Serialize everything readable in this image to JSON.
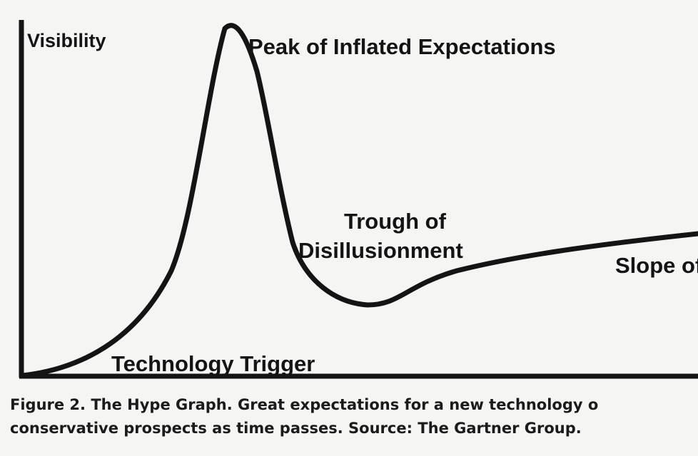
{
  "diagram": {
    "type": "hype-cycle",
    "axis": {
      "y_label": "Visibility"
    },
    "phases": [
      {
        "id": "technology-trigger",
        "label": "Technology Trigger"
      },
      {
        "id": "peak",
        "label": "Peak of Inflated Expectations"
      },
      {
        "id": "trough",
        "label_line1": "Trough of",
        "label_line2": "Disillusionment"
      },
      {
        "id": "slope",
        "label": "Slope of"
      }
    ],
    "colors": {
      "ink": "#141414",
      "background": "#f5f5f3"
    }
  },
  "caption": {
    "line1": "Figure 2. The Hype Graph. Great expectations for a new technology o",
    "line2": "conservative prospects as time passes. Source: The Gartner Group."
  }
}
